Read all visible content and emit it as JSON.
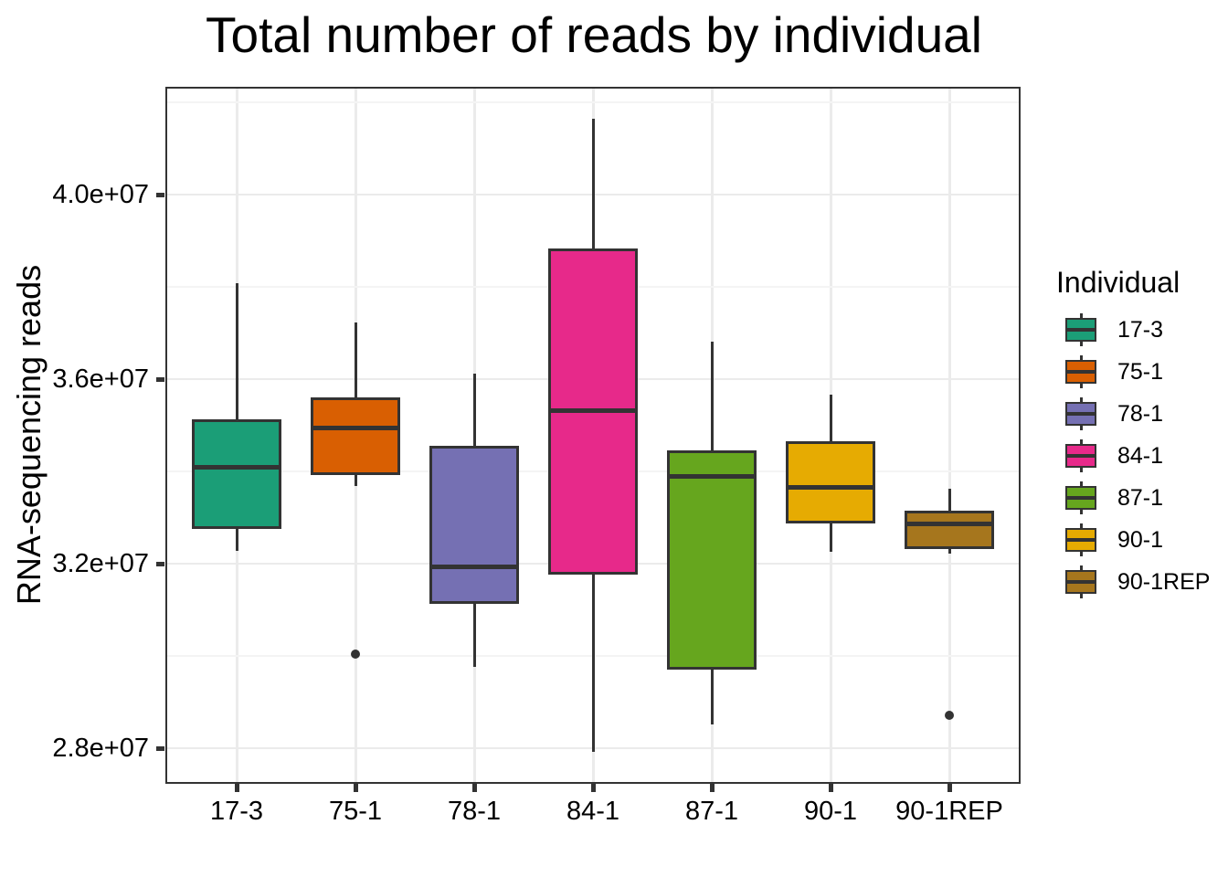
{
  "title": "Total number of reads by individual",
  "y_axis": {
    "title": "RNA-sequencing reads",
    "major_ticks": [
      {
        "value": 40000000,
        "label": "4.0e+07"
      },
      {
        "value": 36000000,
        "label": "3.6e+07"
      },
      {
        "value": 32000000,
        "label": "3.2e+07"
      },
      {
        "value": 28000000,
        "label": "2.8e+07"
      }
    ],
    "minor_ticks": [
      42000000,
      38000000,
      34000000,
      30000000
    ]
  },
  "x_axis": {
    "categories": [
      "17-3",
      "75-1",
      "78-1",
      "84-1",
      "87-1",
      "90-1",
      "90-1REP"
    ]
  },
  "legend": {
    "title": "Individual",
    "entries": [
      {
        "label": "17-3",
        "color": "#1B9E77"
      },
      {
        "label": "75-1",
        "color": "#D95F02"
      },
      {
        "label": "78-1",
        "color": "#7570B3"
      },
      {
        "label": "84-1",
        "color": "#E7298A"
      },
      {
        "label": "87-1",
        "color": "#66A61E"
      },
      {
        "label": "90-1",
        "color": "#E6AB02"
      },
      {
        "label": "90-1REP",
        "color": "#A6761D"
      }
    ]
  },
  "chart_data": {
    "type": "boxplot",
    "title": "Total number of reads by individual",
    "xlabel": "",
    "ylabel": "RNA-sequencing reads",
    "categories": [
      "17-3",
      "75-1",
      "78-1",
      "84-1",
      "87-1",
      "90-1",
      "90-1REP"
    ],
    "ylim": [
      27230000,
      42340000
    ],
    "grid": true,
    "legend_position": "right",
    "series": [
      {
        "name": "17-3",
        "color": "#1B9E77",
        "whisker_low": 32280000,
        "q1": 32750000,
        "median": 34100000,
        "q3": 35130000,
        "whisker_high": 38080000,
        "outliers": []
      },
      {
        "name": "75-1",
        "color": "#D95F02",
        "whisker_low": 33680000,
        "q1": 33920000,
        "median": 34950000,
        "q3": 35600000,
        "whisker_high": 37230000,
        "outliers": [
          30050000
        ]
      },
      {
        "name": "78-1",
        "color": "#7570B3",
        "whisker_low": 29760000,
        "q1": 31130000,
        "median": 31940000,
        "q3": 34550000,
        "whisker_high": 36120000,
        "outliers": []
      },
      {
        "name": "84-1",
        "color": "#E7298A",
        "whisker_low": 27920000,
        "q1": 31760000,
        "median": 35310000,
        "q3": 38830000,
        "whisker_high": 41650000,
        "outliers": []
      },
      {
        "name": "87-1",
        "color": "#66A61E",
        "whisker_low": 28510000,
        "q1": 29700000,
        "median": 33900000,
        "q3": 34460000,
        "whisker_high": 36810000,
        "outliers": []
      },
      {
        "name": "90-1",
        "color": "#E6AB02",
        "whisker_low": 32260000,
        "q1": 32870000,
        "median": 33660000,
        "q3": 34650000,
        "whisker_high": 35660000,
        "outliers": []
      },
      {
        "name": "90-1REP",
        "color": "#A6761D",
        "whisker_low": 32220000,
        "q1": 32320000,
        "median": 32870000,
        "q3": 33150000,
        "whisker_high": 33620000,
        "outliers": [
          28710000
        ]
      }
    ],
    "colors": {
      "box_border": "#333333",
      "grid_major": "#ebebeb",
      "grid_minor": "#f4f4f4",
      "panel_border": "#333333",
      "background": "#ffffff"
    }
  }
}
